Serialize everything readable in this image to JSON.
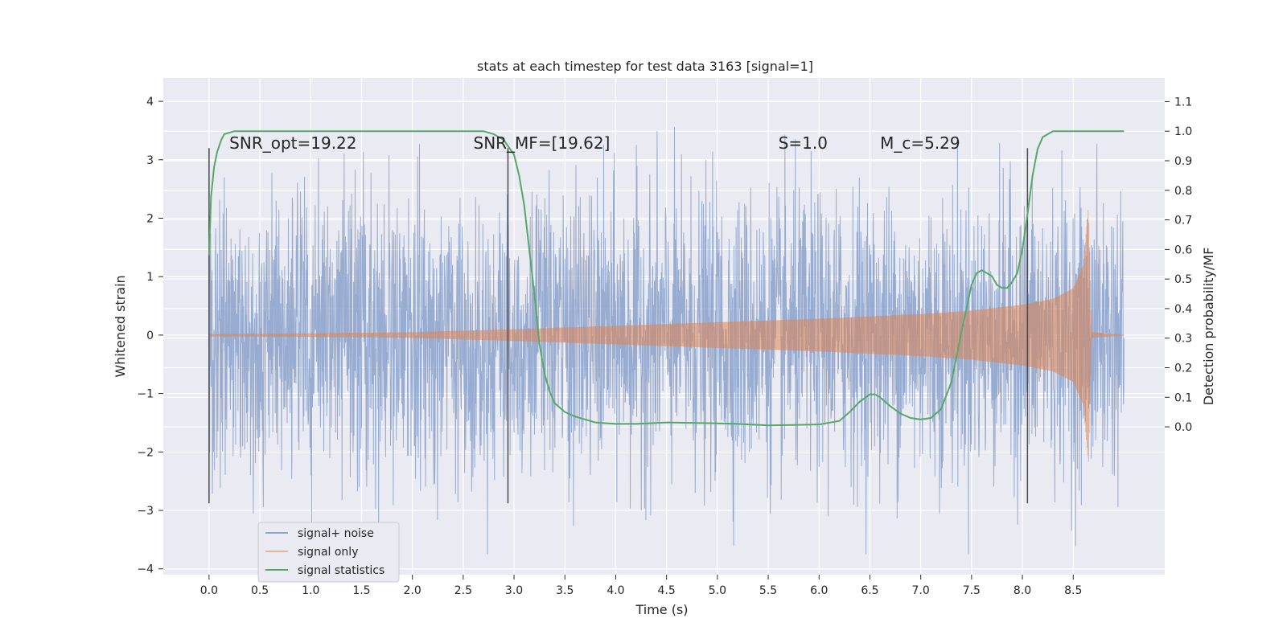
{
  "chart_data": {
    "type": "line",
    "title": "stats at each timestep for test data 3163 [signal=1]",
    "xlabel": "Time (s)",
    "ylabel": "Whitened strain",
    "y2label": "Detection probability/MF",
    "xlim": [
      -0.45,
      9.4
    ],
    "ylim": [
      -4.1,
      4.4
    ],
    "y2lim": [
      -0.5,
      1.18
    ],
    "x_ticks": [
      "0.0",
      "0.5",
      "1.0",
      "1.5",
      "2.0",
      "2.5",
      "3.0",
      "3.5",
      "4.0",
      "4.5",
      "5.0",
      "5.5",
      "6.0",
      "6.5",
      "7.0",
      "7.5",
      "8.0",
      "8.5"
    ],
    "y_ticks": [
      "4",
      "3",
      "2",
      "1",
      "0",
      "−1",
      "−2",
      "−3",
      "−4"
    ],
    "y2_ticks": [
      "1.1",
      "1.0",
      "0.9",
      "0.8",
      "0.7",
      "0.6",
      "0.5",
      "0.4",
      "0.3",
      "0.2",
      "0.1",
      "0.0"
    ],
    "annotations": [
      {
        "text": "SNR_opt=19.22",
        "x": 0.2
      },
      {
        "text": "SNR_MF=[19.62]",
        "x": 2.6
      },
      {
        "text": "S=1.0",
        "x": 5.6
      },
      {
        "text": "M_c=5.29",
        "x": 6.6
      }
    ],
    "vlines": [
      0.0,
      2.94,
      8.05
    ],
    "legend": {
      "location": "lower-left",
      "entries": [
        "signal+ noise",
        "signal only",
        "signal statistics"
      ]
    },
    "colors": {
      "noise": "#8fa5cd",
      "signal": "#dd8452",
      "stats": "#55a868",
      "background": "#eaeaf2",
      "grid": "#ffffff",
      "vline": "#4a4a4a"
    },
    "series": [
      {
        "name": "signal+ noise",
        "description_values": "whitened strain, roughly Gaussian noise with sigma about 1.2, spanning 0.0 to 9.0 s, peak values near +4.0 and -3.7",
        "x_range": [
          0.0,
          9.0
        ],
        "sigma": 1.2
      },
      {
        "name": "signal only",
        "x": [
          0.0,
          1.0,
          2.0,
          3.0,
          4.0,
          5.0,
          6.0,
          7.0,
          7.5,
          8.0,
          8.3,
          8.5,
          8.6,
          8.65,
          8.68,
          9.0
        ],
        "envelope": [
          0.02,
          0.03,
          0.05,
          0.1,
          0.16,
          0.22,
          0.28,
          0.36,
          0.42,
          0.52,
          0.62,
          0.8,
          1.2,
          2.2,
          0.05,
          0.0
        ]
      },
      {
        "name": "signal statistics",
        "x": [
          0.0,
          0.02,
          0.05,
          0.08,
          0.12,
          0.15,
          0.25,
          0.5,
          1.0,
          2.0,
          2.5,
          2.7,
          2.8,
          2.9,
          3.0,
          3.05,
          3.1,
          3.15,
          3.2,
          3.25,
          3.3,
          3.35,
          3.4,
          3.5,
          3.6,
          3.7,
          3.8,
          4.0,
          4.2,
          4.5,
          5.0,
          5.2,
          5.5,
          6.0,
          6.2,
          6.3,
          6.4,
          6.5,
          6.55,
          6.6,
          6.7,
          6.8,
          6.9,
          7.0,
          7.1,
          7.2,
          7.3,
          7.4,
          7.5,
          7.55,
          7.6,
          7.7,
          7.75,
          7.8,
          7.85,
          7.9,
          7.95,
          8.0,
          8.05,
          8.1,
          8.15,
          8.2,
          8.25,
          8.3,
          8.4,
          8.5,
          9.0
        ],
        "y": [
          0.58,
          0.78,
          0.88,
          0.93,
          0.97,
          0.99,
          1.0,
          1.0,
          1.0,
          1.0,
          1.0,
          1.0,
          0.99,
          0.97,
          0.92,
          0.85,
          0.75,
          0.6,
          0.45,
          0.28,
          0.18,
          0.12,
          0.08,
          0.05,
          0.035,
          0.025,
          0.015,
          0.01,
          0.01,
          0.015,
          0.012,
          0.01,
          0.005,
          0.008,
          0.02,
          0.05,
          0.085,
          0.11,
          0.11,
          0.1,
          0.07,
          0.045,
          0.03,
          0.025,
          0.03,
          0.06,
          0.15,
          0.32,
          0.48,
          0.52,
          0.53,
          0.51,
          0.48,
          0.47,
          0.47,
          0.49,
          0.52,
          0.6,
          0.72,
          0.85,
          0.94,
          0.98,
          0.99,
          1.0,
          1.0,
          1.0,
          1.0
        ]
      }
    ]
  }
}
